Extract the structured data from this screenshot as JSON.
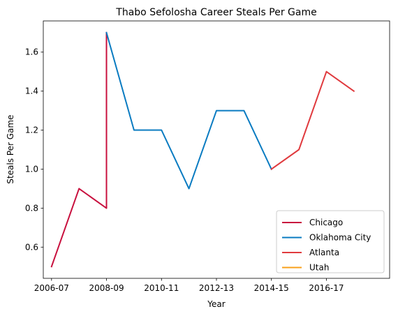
{
  "chart_data": {
    "type": "line",
    "title": "Thabo Sefolosha Career Steals Per Game",
    "xlabel": "Year",
    "ylabel": "Steals Per Game",
    "x_tick_labels": [
      "2006-07",
      "2008-09",
      "2010-11",
      "2012-13",
      "2014-15",
      "2016-17"
    ],
    "y_ticks": [
      0.6,
      0.8,
      1.0,
      1.2,
      1.4,
      1.6
    ],
    "y_tick_labels": [
      "0.6",
      "0.8",
      "1.0",
      "1.2",
      "1.4",
      "1.6"
    ],
    "xlim": [
      -0.3,
      12.3
    ],
    "ylim": [
      0.44,
      1.76
    ],
    "grid": false,
    "legend_position": "bottom-right",
    "series": [
      {
        "name": "Chicago",
        "color": "#c8103e",
        "points": [
          {
            "x": "2006-07",
            "y": 0.5
          },
          {
            "x": "2007-08",
            "y": 0.9
          },
          {
            "x": "2008-09",
            "y": 0.8
          },
          {
            "x": "2008-09",
            "y": 1.7
          }
        ]
      },
      {
        "name": "Oklahoma City",
        "color": "#0a7bc1",
        "points": [
          {
            "x": "2008-09",
            "y": 1.7
          },
          {
            "x": "2009-10",
            "y": 1.2
          },
          {
            "x": "2010-11",
            "y": 1.2
          },
          {
            "x": "2011-12",
            "y": 0.9
          },
          {
            "x": "2012-13",
            "y": 1.3
          },
          {
            "x": "2013-14",
            "y": 1.3
          },
          {
            "x": "2014-15",
            "y": 1.0
          }
        ]
      },
      {
        "name": "Atlanta",
        "color": "#e03a3e",
        "points": [
          {
            "x": "2014-15",
            "y": 1.0
          },
          {
            "x": "2015-16",
            "y": 1.1
          },
          {
            "x": "2016-17",
            "y": 1.5
          },
          {
            "x": "2017-18",
            "y": 1.4
          }
        ]
      },
      {
        "name": "Utah",
        "color": "#f9a01b",
        "points": []
      }
    ]
  }
}
